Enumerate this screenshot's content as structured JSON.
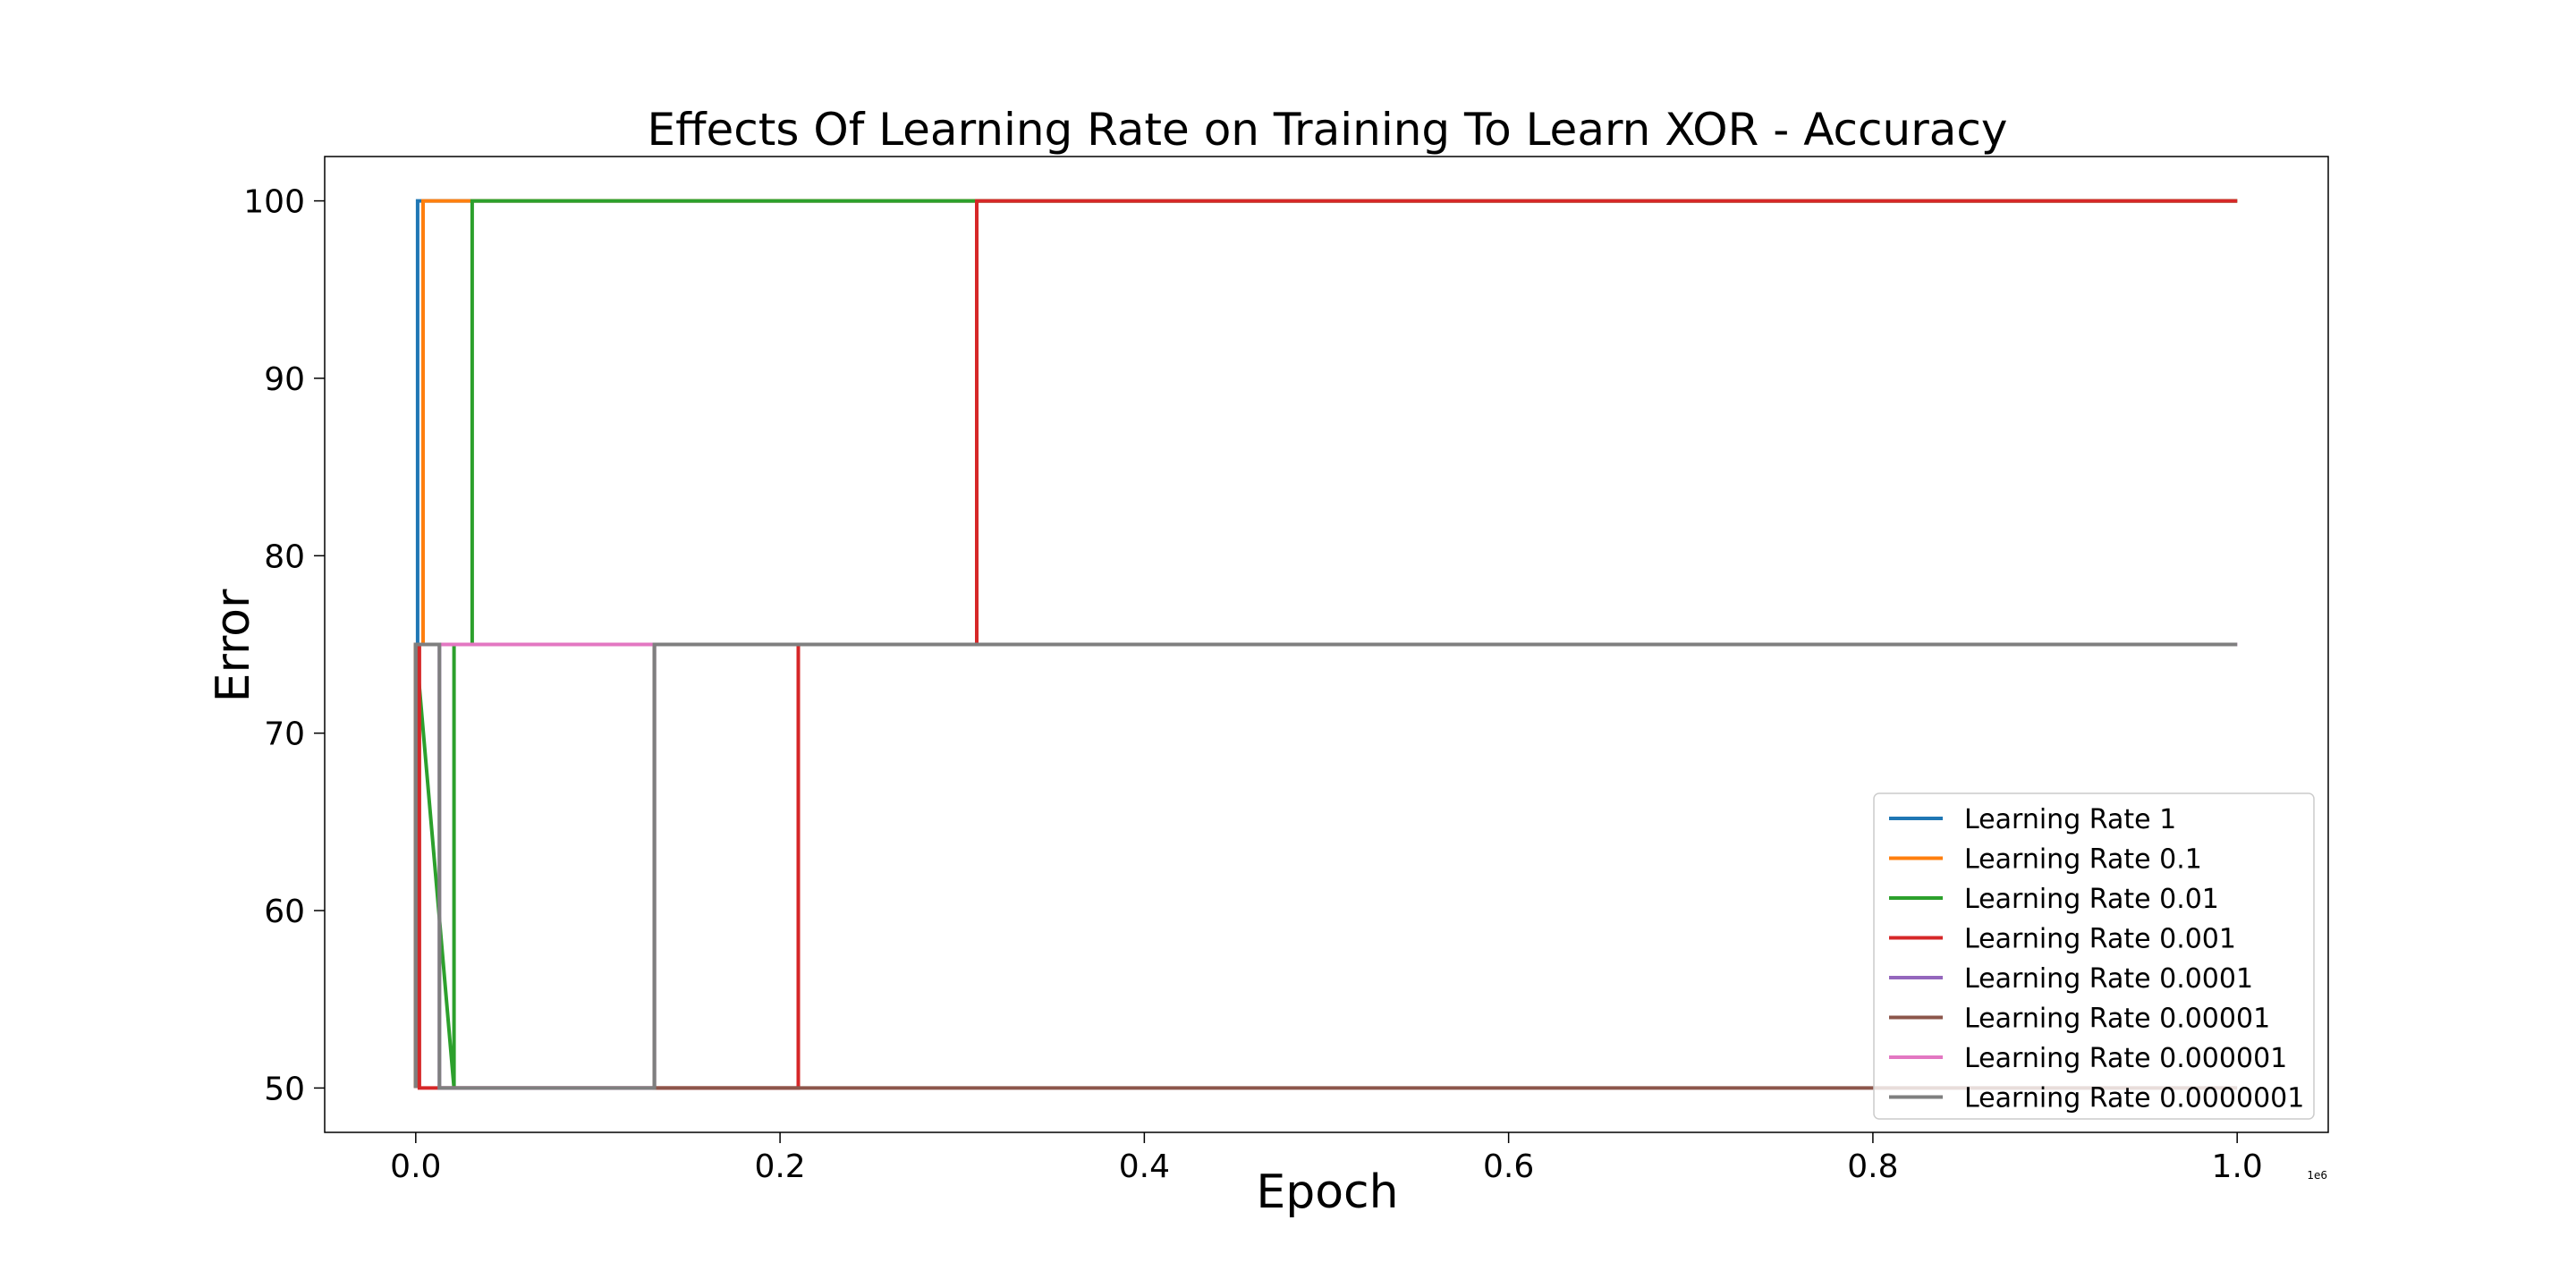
{
  "chart_data": {
    "type": "line",
    "title": "Effects Of Learning Rate on Training To Learn XOR - Accuracy",
    "xlabel": "Epoch",
    "ylabel": "Error",
    "x_offset_label": "1e6",
    "xlim": [
      -0.05,
      1.05
    ],
    "ylim": [
      47.5,
      102.5
    ],
    "xticks": [
      0.0,
      0.2,
      0.4,
      0.6,
      0.8,
      1.0
    ],
    "xtick_labels": [
      "0.0",
      "0.2",
      "0.4",
      "0.6",
      "0.8",
      "1.0"
    ],
    "yticks": [
      50,
      60,
      70,
      80,
      90,
      100
    ],
    "ytick_labels": [
      "50",
      "60",
      "70",
      "80",
      "90",
      "100"
    ],
    "grid": false,
    "legend_position": "lower-right",
    "series": [
      {
        "name": "Learning Rate 1",
        "color": "#1f77b4",
        "x": [
          0.0,
          0.0,
          0.001,
          0.001,
          1.0
        ],
        "y": [
          50,
          75,
          75,
          100,
          100
        ]
      },
      {
        "name": "Learning Rate 0.1",
        "color": "#ff7f0e",
        "x": [
          0.0,
          0.0,
          0.004,
          0.004,
          1.0
        ],
        "y": [
          50,
          75,
          75,
          100,
          100
        ]
      },
      {
        "name": "Learning Rate 0.01",
        "color": "#2ca02c",
        "x": [
          0.0,
          0.0,
          0.021,
          0.021,
          0.031,
          0.031,
          1.0
        ],
        "y": [
          50,
          75,
          50,
          75,
          75,
          100,
          100
        ]
      },
      {
        "name": "Learning Rate 0.001",
        "color": "#d62728",
        "x": [
          0.0,
          0.0,
          0.002,
          0.002,
          0.21,
          0.21,
          0.308,
          0.308,
          1.0
        ],
        "y": [
          50,
          75,
          75,
          50,
          50,
          75,
          75,
          100,
          100
        ]
      },
      {
        "name": "Learning Rate 0.0001",
        "color": "#9467bd",
        "x": [
          0.0,
          0.0,
          0.013,
          0.013,
          0.131,
          0.131,
          1.0
        ],
        "y": [
          75,
          75,
          75,
          50,
          50,
          75,
          75
        ]
      },
      {
        "name": "Learning Rate 0.00001",
        "color": "#8c564b",
        "x": [
          0.0,
          0.0,
          0.131,
          0.131,
          1.0
        ],
        "y": [
          75,
          75,
          75,
          50,
          50
        ]
      },
      {
        "name": "Learning Rate 0.000001",
        "color": "#e377c2",
        "x": [
          0.0,
          1.0
        ],
        "y": [
          75,
          75
        ]
      },
      {
        "name": "Learning Rate 0.0000001",
        "color": "#7f7f7f",
        "x": [
          0.0,
          0.0,
          0.013,
          0.013,
          0.131,
          0.131,
          1.0
        ],
        "y": [
          50,
          75,
          75,
          50,
          50,
          75,
          75
        ]
      }
    ]
  }
}
